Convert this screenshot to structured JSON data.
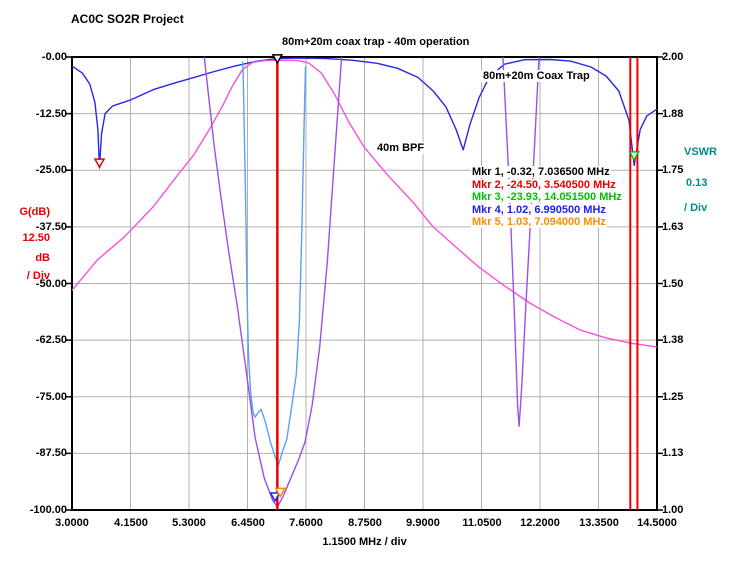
{
  "page": {
    "title": "AC0C SO2R Project"
  },
  "chart_data": {
    "type": "line",
    "title": "80m+20m coax trap - 40m operation",
    "x_axis": {
      "label": "1.1500 MHz / div",
      "unit": "MHz",
      "min": 3.0,
      "max": 14.5,
      "per_div": 1.15,
      "ticks": [
        "3.0000",
        "4.1500",
        "5.3000",
        "6.4500",
        "7.6000",
        "8.7500",
        "9.9000",
        "11.0500",
        "12.2000",
        "13.3500",
        "14.5000"
      ]
    },
    "left_axis": {
      "name": "Gain",
      "lines": [
        "G(dB)",
        "12.50",
        "dB",
        "/ Div"
      ],
      "color": "#e80000",
      "min": -100.0,
      "max": 0.0,
      "ticks": [
        "-0.00",
        "-12.50",
        "-25.00",
        "-37.50",
        "-50.00",
        "-62.50",
        "-75.00",
        "-87.50",
        "-100.00"
      ]
    },
    "right_axis": {
      "name": "VSWR",
      "lines": [
        "VSWR",
        "0.13",
        "/ Div"
      ],
      "color": "#008c8c",
      "min": 1.0,
      "max": 2.0,
      "ticks": [
        "2.00",
        "1.88",
        "1.75",
        "1.63",
        "1.50",
        "1.38",
        "1.25",
        "1.13",
        "1.00"
      ]
    },
    "grid": true,
    "grid_color": "#b0b0b0",
    "series": [
      {
        "name": "trap-gain",
        "label": "80m+20m Coax Trap",
        "axis": "gain",
        "color": "#2828e8",
        "points": [
          [
            3.0,
            -2
          ],
          [
            3.2,
            -3.5
          ],
          [
            3.35,
            -6
          ],
          [
            3.45,
            -10
          ],
          [
            3.51,
            -16
          ],
          [
            3.5405,
            -24.5
          ],
          [
            3.58,
            -17
          ],
          [
            3.65,
            -12.5
          ],
          [
            3.8,
            -10.8
          ],
          [
            4.15,
            -9.5
          ],
          [
            4.6,
            -7.2
          ],
          [
            5.0,
            -5.8
          ],
          [
            5.4,
            -4.5
          ],
          [
            5.8,
            -3.2
          ],
          [
            6.2,
            -2.0
          ],
          [
            6.6,
            -1.0
          ],
          [
            7.0365,
            -0.32
          ],
          [
            7.5,
            -0.25
          ],
          [
            8.0,
            -0.35
          ],
          [
            8.5,
            -0.7
          ],
          [
            9.0,
            -1.4
          ],
          [
            9.4,
            -2.5
          ],
          [
            9.8,
            -4.5
          ],
          [
            10.1,
            -7.5
          ],
          [
            10.35,
            -11
          ],
          [
            10.55,
            -16
          ],
          [
            10.69,
            -20.5
          ],
          [
            10.82,
            -15
          ],
          [
            11.0,
            -9
          ],
          [
            11.2,
            -4.5
          ],
          [
            11.5,
            -1.6
          ],
          [
            11.9,
            -0.6
          ],
          [
            12.4,
            -0.55
          ],
          [
            12.8,
            -0.9
          ],
          [
            13.2,
            -2.2
          ],
          [
            13.5,
            -4.2
          ],
          [
            13.75,
            -7.5
          ],
          [
            13.95,
            -14
          ],
          [
            14.0515,
            -23.93
          ],
          [
            14.17,
            -16
          ],
          [
            14.3,
            -13
          ],
          [
            14.5,
            -11.5
          ]
        ]
      },
      {
        "name": "bpf-gain",
        "label": "40m BPF",
        "axis": "gain",
        "color": "#f852da",
        "points": [
          [
            3.0,
            -51.5
          ],
          [
            3.5,
            -44.8
          ],
          [
            4.0,
            -40
          ],
          [
            4.22,
            -37.5
          ],
          [
            4.6,
            -33
          ],
          [
            5.0,
            -27.2
          ],
          [
            5.4,
            -21.5
          ],
          [
            5.7,
            -16
          ],
          [
            5.95,
            -11
          ],
          [
            6.15,
            -6.5
          ],
          [
            6.35,
            -2.8
          ],
          [
            6.55,
            -1.2
          ],
          [
            6.8,
            -0.8
          ],
          [
            7.1,
            -0.7
          ],
          [
            7.45,
            -0.8
          ],
          [
            7.65,
            -1.3
          ],
          [
            7.9,
            -3.5
          ],
          [
            8.15,
            -8
          ],
          [
            8.45,
            -14.5
          ],
          [
            8.75,
            -20
          ],
          [
            9.2,
            -26
          ],
          [
            9.7,
            -32
          ],
          [
            10.1,
            -37.5
          ],
          [
            10.6,
            -42.5
          ],
          [
            11.0,
            -46.4
          ],
          [
            11.5,
            -50.5
          ],
          [
            12.0,
            -54.3
          ],
          [
            12.5,
            -57.5
          ],
          [
            13.0,
            -60.3
          ],
          [
            13.5,
            -62
          ],
          [
            14.0,
            -63.2
          ],
          [
            14.5,
            -64
          ]
        ]
      },
      {
        "name": "vswr-main",
        "label": "",
        "axis": "vswr",
        "color": "#9a50e8",
        "points": [
          [
            5.6,
            2.0
          ],
          [
            5.7,
            1.9
          ],
          [
            5.8,
            1.8
          ],
          [
            5.93,
            1.69
          ],
          [
            6.08,
            1.57
          ],
          [
            6.25,
            1.45
          ],
          [
            6.42,
            1.31
          ],
          [
            6.6,
            1.16
          ],
          [
            6.78,
            1.07
          ],
          [
            6.95,
            1.02
          ],
          [
            7.04,
            1.007
          ],
          [
            7.15,
            1.03
          ],
          [
            7.3,
            1.07
          ],
          [
            7.45,
            1.11
          ],
          [
            7.58,
            1.15
          ],
          [
            7.72,
            1.23
          ],
          [
            7.87,
            1.36
          ],
          [
            8.02,
            1.55
          ],
          [
            8.15,
            1.76
          ],
          [
            8.3,
            2.0
          ]
        ]
      },
      {
        "name": "vswr-spur-notch",
        "label": "",
        "axis": "vswr",
        "color": "#9a50e8",
        "points": [
          [
            11.47,
            2.0
          ],
          [
            11.56,
            1.8
          ],
          [
            11.63,
            1.62
          ],
          [
            11.7,
            1.42
          ],
          [
            11.76,
            1.23
          ],
          [
            11.79,
            1.185
          ],
          [
            11.84,
            1.27
          ],
          [
            11.92,
            1.45
          ],
          [
            12.01,
            1.63
          ],
          [
            12.1,
            1.82
          ],
          [
            12.18,
            2.0
          ]
        ]
      },
      {
        "name": "40m-notch",
        "label": "",
        "axis": "gain",
        "color": "#58a0f8",
        "points": [
          [
            6.36,
            -1
          ],
          [
            6.38,
            -12
          ],
          [
            6.41,
            -30
          ],
          [
            6.44,
            -52
          ],
          [
            6.47,
            -66
          ],
          [
            6.51,
            -74
          ],
          [
            6.56,
            -78.5
          ],
          [
            6.6,
            -79.5
          ],
          [
            6.66,
            -78.5
          ],
          [
            6.72,
            -77.8
          ],
          [
            6.8,
            -80.5
          ],
          [
            6.9,
            -85
          ],
          [
            7.0,
            -88.5
          ],
          [
            7.06,
            -90
          ],
          [
            7.14,
            -87
          ],
          [
            7.22,
            -84.5
          ],
          [
            7.32,
            -77
          ],
          [
            7.41,
            -70
          ],
          [
            7.47,
            -58
          ],
          [
            7.52,
            -38
          ],
          [
            7.56,
            -16
          ],
          [
            7.59,
            -2
          ]
        ]
      }
    ],
    "vlines": [
      {
        "f": 7.0365,
        "color": "#f00000",
        "w": 2.5
      },
      {
        "f": 13.975,
        "color": "#f00000",
        "w": 2
      },
      {
        "f": 14.115,
        "color": "#f00000",
        "w": 2
      }
    ],
    "triangles": [
      {
        "f": 7.0365,
        "axis": "gain",
        "value": -1.3,
        "color": "#000000"
      },
      {
        "f": 3.5405,
        "axis": "gain",
        "value": -24.3,
        "color": "#e80000"
      },
      {
        "f": 14.0515,
        "axis": "gain",
        "value": -22.7,
        "color": "#00c000"
      },
      {
        "f": 6.9905,
        "axis": "vswr",
        "value": 1.02,
        "color": "#2020f0"
      },
      {
        "f": 7.094,
        "axis": "vswr",
        "value": 1.03,
        "color": "#ff8c00"
      }
    ],
    "markers": [
      {
        "label": "Mkr 1, -0.32, 7.036500 MHz",
        "value": -0.32,
        "freq_mhz": 7.0365,
        "color": "#000000"
      },
      {
        "label": "Mkr 2, -24.50, 3.540500 MHz",
        "value": -24.5,
        "freq_mhz": 3.5405,
        "color": "#e80000"
      },
      {
        "label": "Mkr 3, -23.93, 14.051500 MHz",
        "value": -23.93,
        "freq_mhz": 14.0515,
        "color": "#00c000"
      },
      {
        "label": "Mkr 4, 1.02, 6.990500 MHz",
        "value": 1.02,
        "freq_mhz": 6.9905,
        "color": "#2020f0"
      },
      {
        "label": "Mkr 5, 1.03, 7.094000 MHz",
        "value": 1.03,
        "freq_mhz": 7.094,
        "color": "#ff8c00"
      }
    ]
  }
}
